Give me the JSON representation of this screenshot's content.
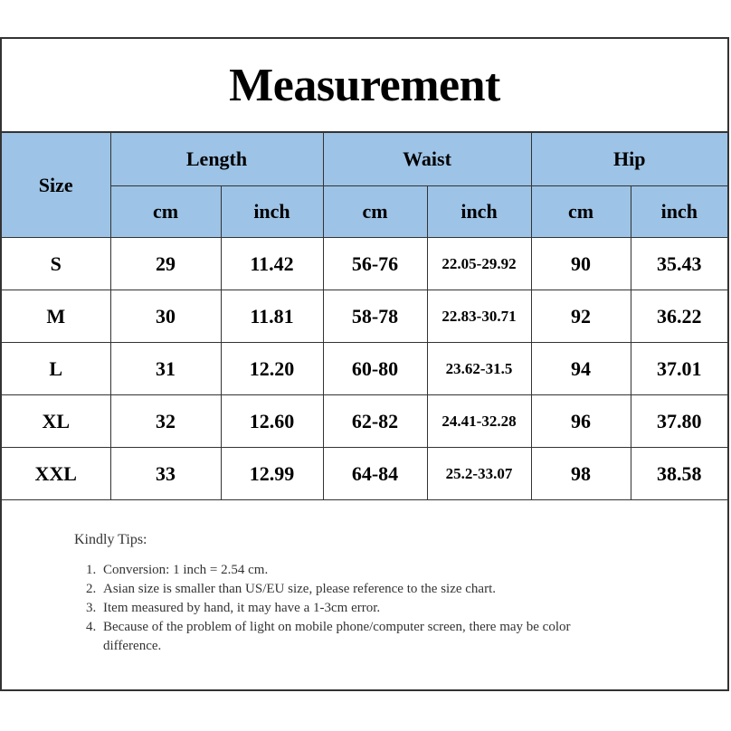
{
  "title": "Measurement",
  "table": {
    "size_header": "Size",
    "groups": [
      "Length",
      "Waist",
      "Hip"
    ],
    "units": [
      "cm",
      "inch",
      "cm",
      "inch",
      "cm",
      "inch"
    ],
    "rows": [
      [
        "S",
        "29",
        "11.42",
        "56-76",
        "22.05-29.92",
        "90",
        "35.43"
      ],
      [
        "M",
        "30",
        "11.81",
        "58-78",
        "22.83-30.71",
        "92",
        "36.22"
      ],
      [
        "L",
        "31",
        "12.20",
        "60-80",
        "23.62-31.5",
        "94",
        "37.01"
      ],
      [
        "XL",
        "32",
        "12.60",
        "62-82",
        "24.41-32.28",
        "96",
        "37.80"
      ],
      [
        "XXL",
        "33",
        "12.99",
        "64-84",
        "25.2-33.07",
        "98",
        "38.58"
      ]
    ]
  },
  "tips": {
    "heading": "Kindly Tips:",
    "items": [
      "Conversion: 1 inch = 2.54 cm.",
      "Asian size is smaller than US/EU size, please reference to the size chart.",
      "Item measured by hand, it may have a 1-3cm error.",
      "Because of the problem of light on mobile phone/computer screen, there may be color difference."
    ]
  },
  "colors": {
    "header_bg": "#9dc3e6",
    "border": "#333333"
  }
}
